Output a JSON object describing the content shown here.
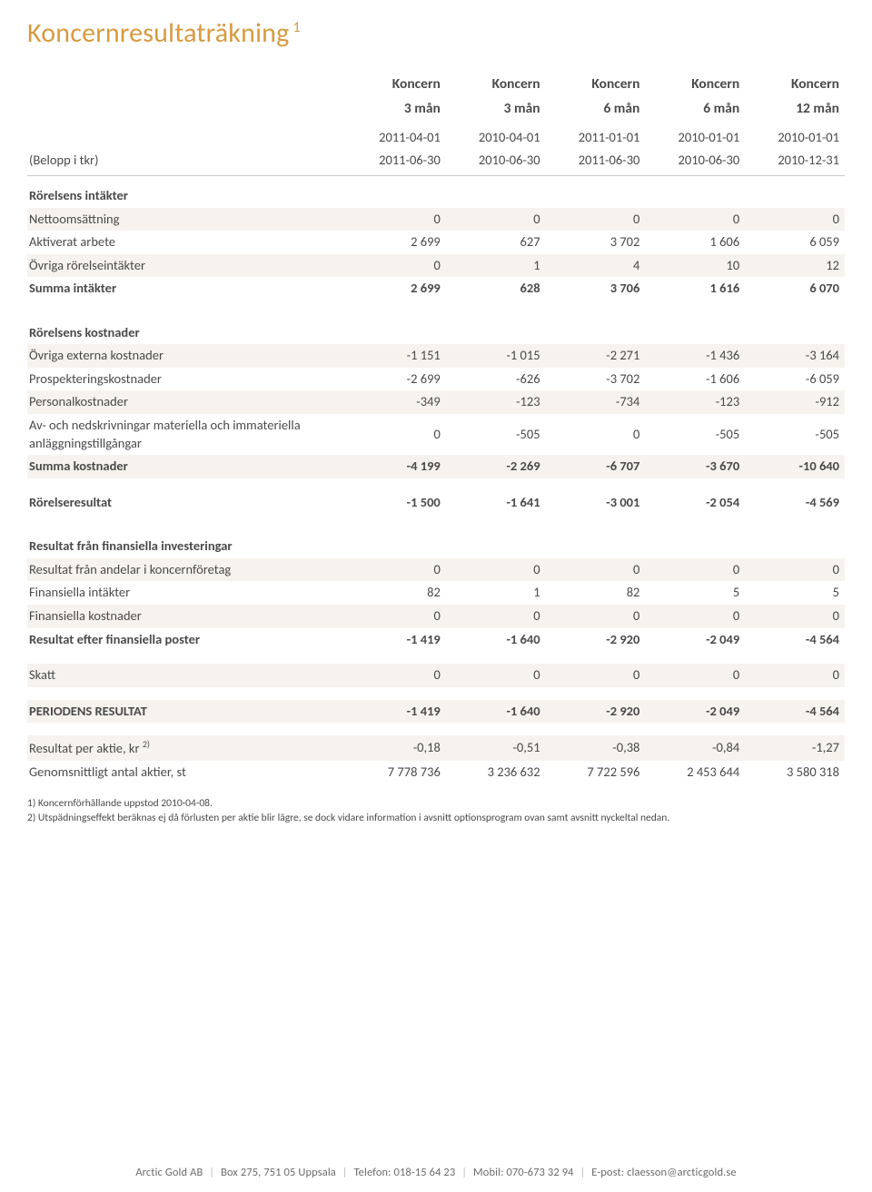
{
  "title": "Koncernresultaträkning",
  "title_super": "1",
  "title_color": "#d89a3e",
  "body_color": "#4a4a4a",
  "shade_bg": "#f6f3ee",
  "header": {
    "row_label": "(Belopp i tkr)",
    "cols": [
      {
        "l1": "Koncern",
        "l2": "3 mån",
        "d1": "2011-04-01",
        "d2": "2011-06-30"
      },
      {
        "l1": "Koncern",
        "l2": "3 mån",
        "d1": "2010-04-01",
        "d2": "2010-06-30"
      },
      {
        "l1": "Koncern",
        "l2": "6 mån",
        "d1": "2011-01-01",
        "d2": "2011-06-30"
      },
      {
        "l1": "Koncern",
        "l2": "6 mån",
        "d1": "2010-01-01",
        "d2": "2010-06-30"
      },
      {
        "l1": "Koncern",
        "l2": "12 mån",
        "d1": "2010-01-01",
        "d2": "2010-12-31"
      }
    ]
  },
  "sections": {
    "rorelsens_intakter": {
      "title": "Rörelsens intäkter",
      "rows": [
        {
          "label": "Nettoomsättning",
          "v": [
            "0",
            "0",
            "0",
            "0",
            "0"
          ],
          "shade": true
        },
        {
          "label": "Aktiverat arbete",
          "v": [
            "2 699",
            "627",
            "3 702",
            "1 606",
            "6 059"
          ],
          "shade": false
        },
        {
          "label": "Övriga rörelseintäkter",
          "v": [
            "0",
            "1",
            "4",
            "10",
            "12"
          ],
          "shade": true
        }
      ],
      "sum": {
        "label": "Summa intäkter",
        "v": [
          "2 699",
          "628",
          "3 706",
          "1 616",
          "6 070"
        ]
      }
    },
    "rorelsens_kostnader": {
      "title": "Rörelsens kostnader",
      "rows": [
        {
          "label": "Övriga externa kostnader",
          "v": [
            "-1 151",
            "-1 015",
            "-2 271",
            "-1 436",
            "-3 164"
          ],
          "shade": true
        },
        {
          "label": "Prospekteringskostnader",
          "v": [
            "-2 699",
            "-626",
            "-3 702",
            "-1 606",
            "-6 059"
          ],
          "shade": false
        },
        {
          "label": "Personalkostnader",
          "v": [
            "-349",
            "-123",
            "-734",
            "-123",
            "-912"
          ],
          "shade": true
        },
        {
          "label": "Av- och nedskrivningar materiella och immateriella anläggningstillgångar",
          "v": [
            "0",
            "-505",
            "0",
            "-505",
            "-505"
          ],
          "shade": false
        }
      ],
      "sum": {
        "label": "Summa kostnader",
        "v": [
          "-4 199",
          "-2 269",
          "-6 707",
          "-3 670",
          "-10 640"
        ],
        "shade": true
      }
    },
    "rorelseresultat": {
      "label": "Rörelseresultat",
      "v": [
        "-1 500",
        "-1 641",
        "-3 001",
        "-2 054",
        "-4 569"
      ]
    },
    "finansiella": {
      "title": "Resultat från finansiella investeringar",
      "rows": [
        {
          "label": "Resultat från andelar i koncernföretag",
          "v": [
            "0",
            "0",
            "0",
            "0",
            "0"
          ],
          "shade": true
        },
        {
          "label": "Finansiella intäkter",
          "v": [
            "82",
            "1",
            "82",
            "5",
            "5"
          ],
          "shade": false
        },
        {
          "label": "Finansiella kostnader",
          "v": [
            "0",
            "0",
            "0",
            "0",
            "0"
          ],
          "shade": true
        }
      ],
      "sum": {
        "label": "Resultat efter finansiella poster",
        "v": [
          "-1 419",
          "-1 640",
          "-2 920",
          "-2 049",
          "-4 564"
        ]
      }
    },
    "skatt": {
      "label": "Skatt",
      "v": [
        "0",
        "0",
        "0",
        "0",
        "0"
      ]
    },
    "period": {
      "label": "PERIODENS RESULTAT",
      "v": [
        "-1 419",
        "-1 640",
        "-2 920",
        "-2 049",
        "-4 564"
      ]
    },
    "per_aktie": {
      "label": "Resultat per aktie, kr",
      "sup": "2)",
      "v": [
        "-0,18",
        "-0,51",
        "-0,38",
        "-0,84",
        "-1,27"
      ]
    },
    "antal_aktier": {
      "label": "Genomsnittligt antal aktier, st",
      "v": [
        "7 778 736",
        "3 236 632",
        "7 722 596",
        "2 453 644",
        "3 580 318"
      ]
    }
  },
  "notes": [
    "1) Koncernförhållande uppstod 2010-04-08.",
    "2) Utspädningseffekt beräknas ej då förlusten per aktie blir lägre, se dock vidare information i avsnitt optionsprogram ovan samt avsnitt nyckeltal nedan."
  ],
  "footer": {
    "parts": [
      "Arctic Gold AB",
      "Box 275, 751 05 Uppsala",
      "Telefon: 018-15 64 23",
      "Mobil: 070-673 32 94",
      "E-post: claesson@arcticgold.se"
    ],
    "sep": "|"
  }
}
